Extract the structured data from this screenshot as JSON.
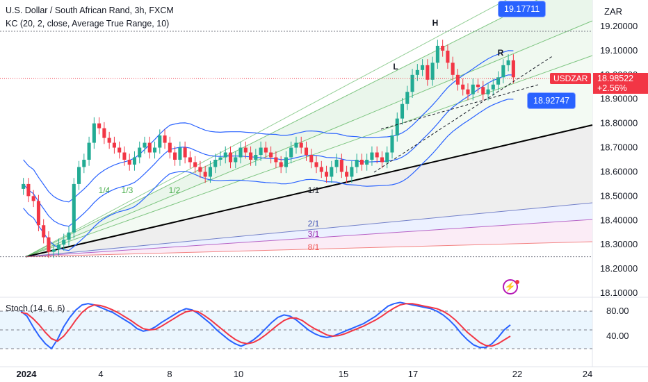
{
  "header": {
    "title": "U.S. Dollar / South African Rand, 3h, FXCM",
    "indicator": "KC (20, 2, close, Average True Range, 10)",
    "stoch_label": "Stoch (14, 6, 6)"
  },
  "axis_currency": "ZAR",
  "symbol": "USDZAR",
  "current_price": "18.98522",
  "change_pct": "+2.56%",
  "badges": {
    "upper": "19.17711",
    "lower": "18.92747"
  },
  "fan_labels": [
    "1/4",
    "1/3",
    "1/2",
    "1/1",
    "2/1",
    "3/1",
    "8/1"
  ],
  "pattern_labels": [
    "L",
    "H",
    "R"
  ],
  "colors": {
    "up": "#22ab94",
    "down": "#f23645",
    "kc": "#2962ff",
    "stoch_k": "#2962ff",
    "stoch_d": "#f23645",
    "badge": "#2962ff"
  },
  "chart_data": [
    {
      "type": "candlestick",
      "y_axis_ticks": [
        "19.20000",
        "19.10000",
        "19.00000",
        "18.90000",
        "18.80000",
        "18.70000",
        "18.60000",
        "18.50000",
        "18.40000",
        "18.30000",
        "18.20000",
        "18.10000"
      ],
      "x_axis_ticks": [
        "2024",
        "4",
        "8",
        "10",
        "15",
        "17",
        "22",
        "24"
      ],
      "ylim": [
        18.1,
        19.2
      ],
      "close_series": [
        18.55,
        18.5,
        18.48,
        18.38,
        18.33,
        18.27,
        18.28,
        18.3,
        18.32,
        18.35,
        18.55,
        18.62,
        18.65,
        18.72,
        18.8,
        18.78,
        18.74,
        18.72,
        18.7,
        18.68,
        18.65,
        18.63,
        18.66,
        18.7,
        18.72,
        18.68,
        18.7,
        18.75,
        18.72,
        18.68,
        18.65,
        18.7,
        18.66,
        18.64,
        18.62,
        18.6,
        18.58,
        18.62,
        18.65,
        18.66,
        18.68,
        18.64,
        18.66,
        18.7,
        18.68,
        18.65,
        18.67,
        18.7,
        18.68,
        18.66,
        18.64,
        18.62,
        18.66,
        18.7,
        18.72,
        18.7,
        18.67,
        18.64,
        18.62,
        18.6,
        18.58,
        18.62,
        18.65,
        18.6,
        18.58,
        18.62,
        18.65,
        18.63,
        18.65,
        18.68,
        18.66,
        18.64,
        18.68,
        18.75,
        18.82,
        18.88,
        18.93,
        19.0,
        19.02,
        19.04,
        18.98,
        19.05,
        19.12,
        19.1,
        19.05,
        19.0,
        18.96,
        18.94,
        18.92,
        18.96,
        18.95,
        18.92,
        18.94,
        18.96,
        18.99,
        19.04,
        19.06,
        18.99
      ]
    },
    {
      "type": "line",
      "name": "Stoch (14, 6, 6)",
      "y_axis_ticks": [
        "80.00",
        "40.00"
      ],
      "ylim": [
        0,
        100
      ],
      "series": [
        {
          "values": [
            80,
            72,
            55,
            40,
            28,
            20,
            35,
            55,
            70,
            82,
            90,
            92,
            90,
            86,
            82,
            78,
            72,
            66,
            60,
            52,
            48,
            50,
            55,
            62,
            68,
            74,
            80,
            84,
            82,
            76,
            68,
            60,
            50,
            42,
            34,
            28,
            24,
            28,
            34,
            42,
            52,
            62,
            70,
            74,
            72,
            66,
            58,
            50,
            44,
            40,
            38,
            40,
            44,
            48,
            52,
            56,
            60,
            66,
            72,
            80,
            88,
            92,
            94,
            92,
            90,
            88,
            86,
            84,
            80,
            74,
            66,
            56,
            44,
            34,
            26,
            22,
            22,
            28,
            38,
            50,
            58
          ]
        },
        {
          "values": [
            78,
            76,
            68,
            58,
            46,
            36,
            32,
            40,
            52,
            66,
            78,
            86,
            90,
            89,
            86,
            82,
            77,
            71,
            65,
            58,
            52,
            50,
            51,
            56,
            62,
            68,
            74,
            79,
            81,
            79,
            73,
            66,
            58,
            50,
            42,
            35,
            30,
            28,
            30,
            35,
            42,
            50,
            58,
            65,
            69,
            69,
            65,
            58,
            52,
            47,
            42,
            40,
            41,
            44,
            48,
            52,
            56,
            61,
            66,
            72,
            79,
            85,
            90,
            92,
            92,
            90,
            88,
            86,
            84,
            80,
            74,
            66,
            56,
            46,
            38,
            30,
            25,
            24,
            28,
            34,
            40
          ]
        }
      ]
    }
  ]
}
